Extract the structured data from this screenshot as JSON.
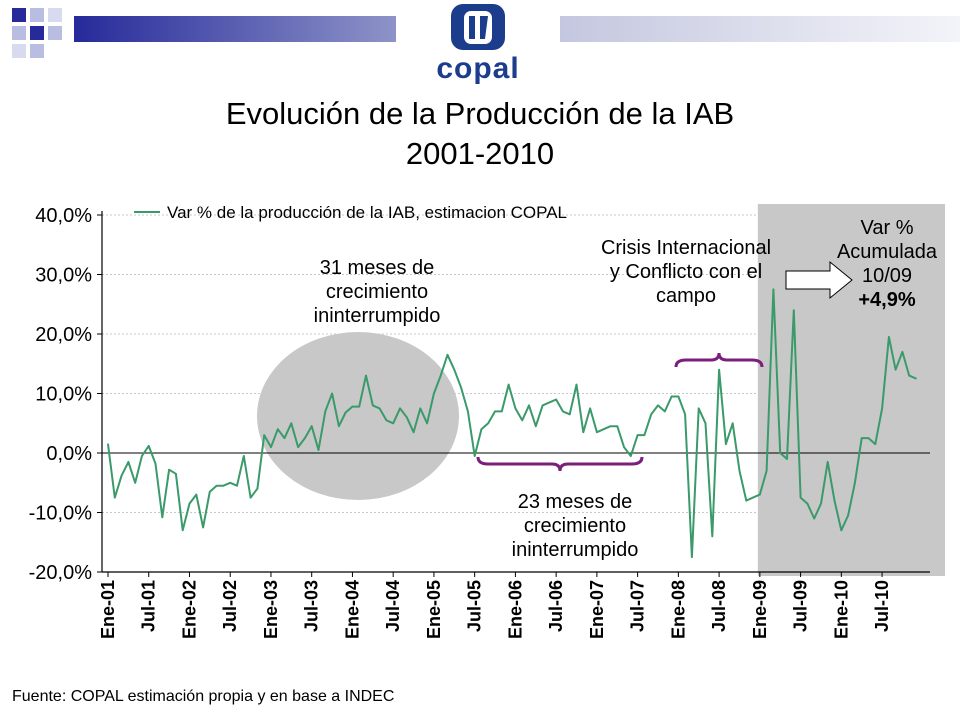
{
  "header": {
    "logo_text": "copal",
    "title": "Evolución de la Producción de la IAB",
    "subtitle": "2001-2010"
  },
  "annotations": {
    "growth_31": "31 meses de crecimiento ininterrumpido",
    "growth_23": "23 meses de crecimiento ininterrumpido",
    "crisis": "Crisis Internacional y Conflicto con el campo",
    "var_line1": "Var %",
    "var_line2": "Acumulada",
    "var_line3": "10/09",
    "var_line4": "+4,9%"
  },
  "footer": {
    "source": "Fuente: COPAL estimación propia y en base a INDEC"
  },
  "colors": {
    "line": "#3a9a6a",
    "ellipse": "#c8c8c8",
    "shade": "#c8c8c8",
    "brace": "#7a1f7a",
    "title_bar": "#262a9a"
  },
  "chart_data": {
    "type": "line",
    "title": "Evolución de la Producción de la IAB",
    "ylim": [
      -20,
      40
    ],
    "y_ticks": [
      "40,0%",
      "30,0%",
      "20,0%",
      "10,0%",
      "0,0%",
      "-10,0%",
      "-20,0%"
    ],
    "x_tick_labels": [
      "Ene-01",
      "Jul-01",
      "Ene-02",
      "Jul-02",
      "Ene-03",
      "Jul-03",
      "Ene-04",
      "Jul-04",
      "Ene-05",
      "Jul-05",
      "Ene-06",
      "Jul-06",
      "Ene-07",
      "Jul-07",
      "Ene-08",
      "Jul-08",
      "Ene-09",
      "Jul-09",
      "Ene-10",
      "Jul-10"
    ],
    "series": [
      {
        "name": "Var % de la producción de la IAB, estimacion COPAL",
        "start": "Ene-01",
        "frequency": "monthly",
        "values": [
          1.5,
          -7.5,
          -3.8,
          -1.5,
          -5,
          -0.5,
          1.2,
          -1.8,
          -10.8,
          -2.8,
          -3.5,
          -13,
          -8.5,
          -7,
          -12.5,
          -6.5,
          -5.5,
          -5.5,
          -5,
          -5.5,
          -0.5,
          -7.5,
          -6,
          3,
          1,
          4,
          2.5,
          5,
          1,
          2.5,
          4.5,
          0.5,
          7,
          10,
          4.5,
          6.8,
          7.8,
          7.8,
          13,
          8,
          7.5,
          5.5,
          5,
          7.5,
          6,
          3.5,
          7.5,
          5,
          10,
          13,
          16.5,
          14,
          11,
          7,
          -0.5,
          4,
          5,
          7,
          7,
          11.5,
          7.5,
          5.5,
          8,
          4.5,
          8,
          8.5,
          9,
          7,
          6.5,
          11.5,
          3.5,
          7.5,
          3.5,
          4,
          4.5,
          4.5,
          1,
          -0.5,
          3,
          3,
          6.5,
          8,
          7,
          9.5,
          9.5,
          6.5,
          -17.5,
          7.5,
          5,
          -14,
          14,
          1.5,
          5,
          -3,
          -8,
          -7.5,
          -7,
          -3,
          27.5,
          0,
          -1,
          24,
          -7.5,
          -8.5,
          -11,
          -8.5,
          -1.5,
          -8,
          -13,
          -10.5,
          -5,
          2.5,
          2.5,
          1.5,
          7.5,
          19.5,
          14,
          17,
          13,
          12.5
        ]
      }
    ],
    "legend": "top"
  }
}
